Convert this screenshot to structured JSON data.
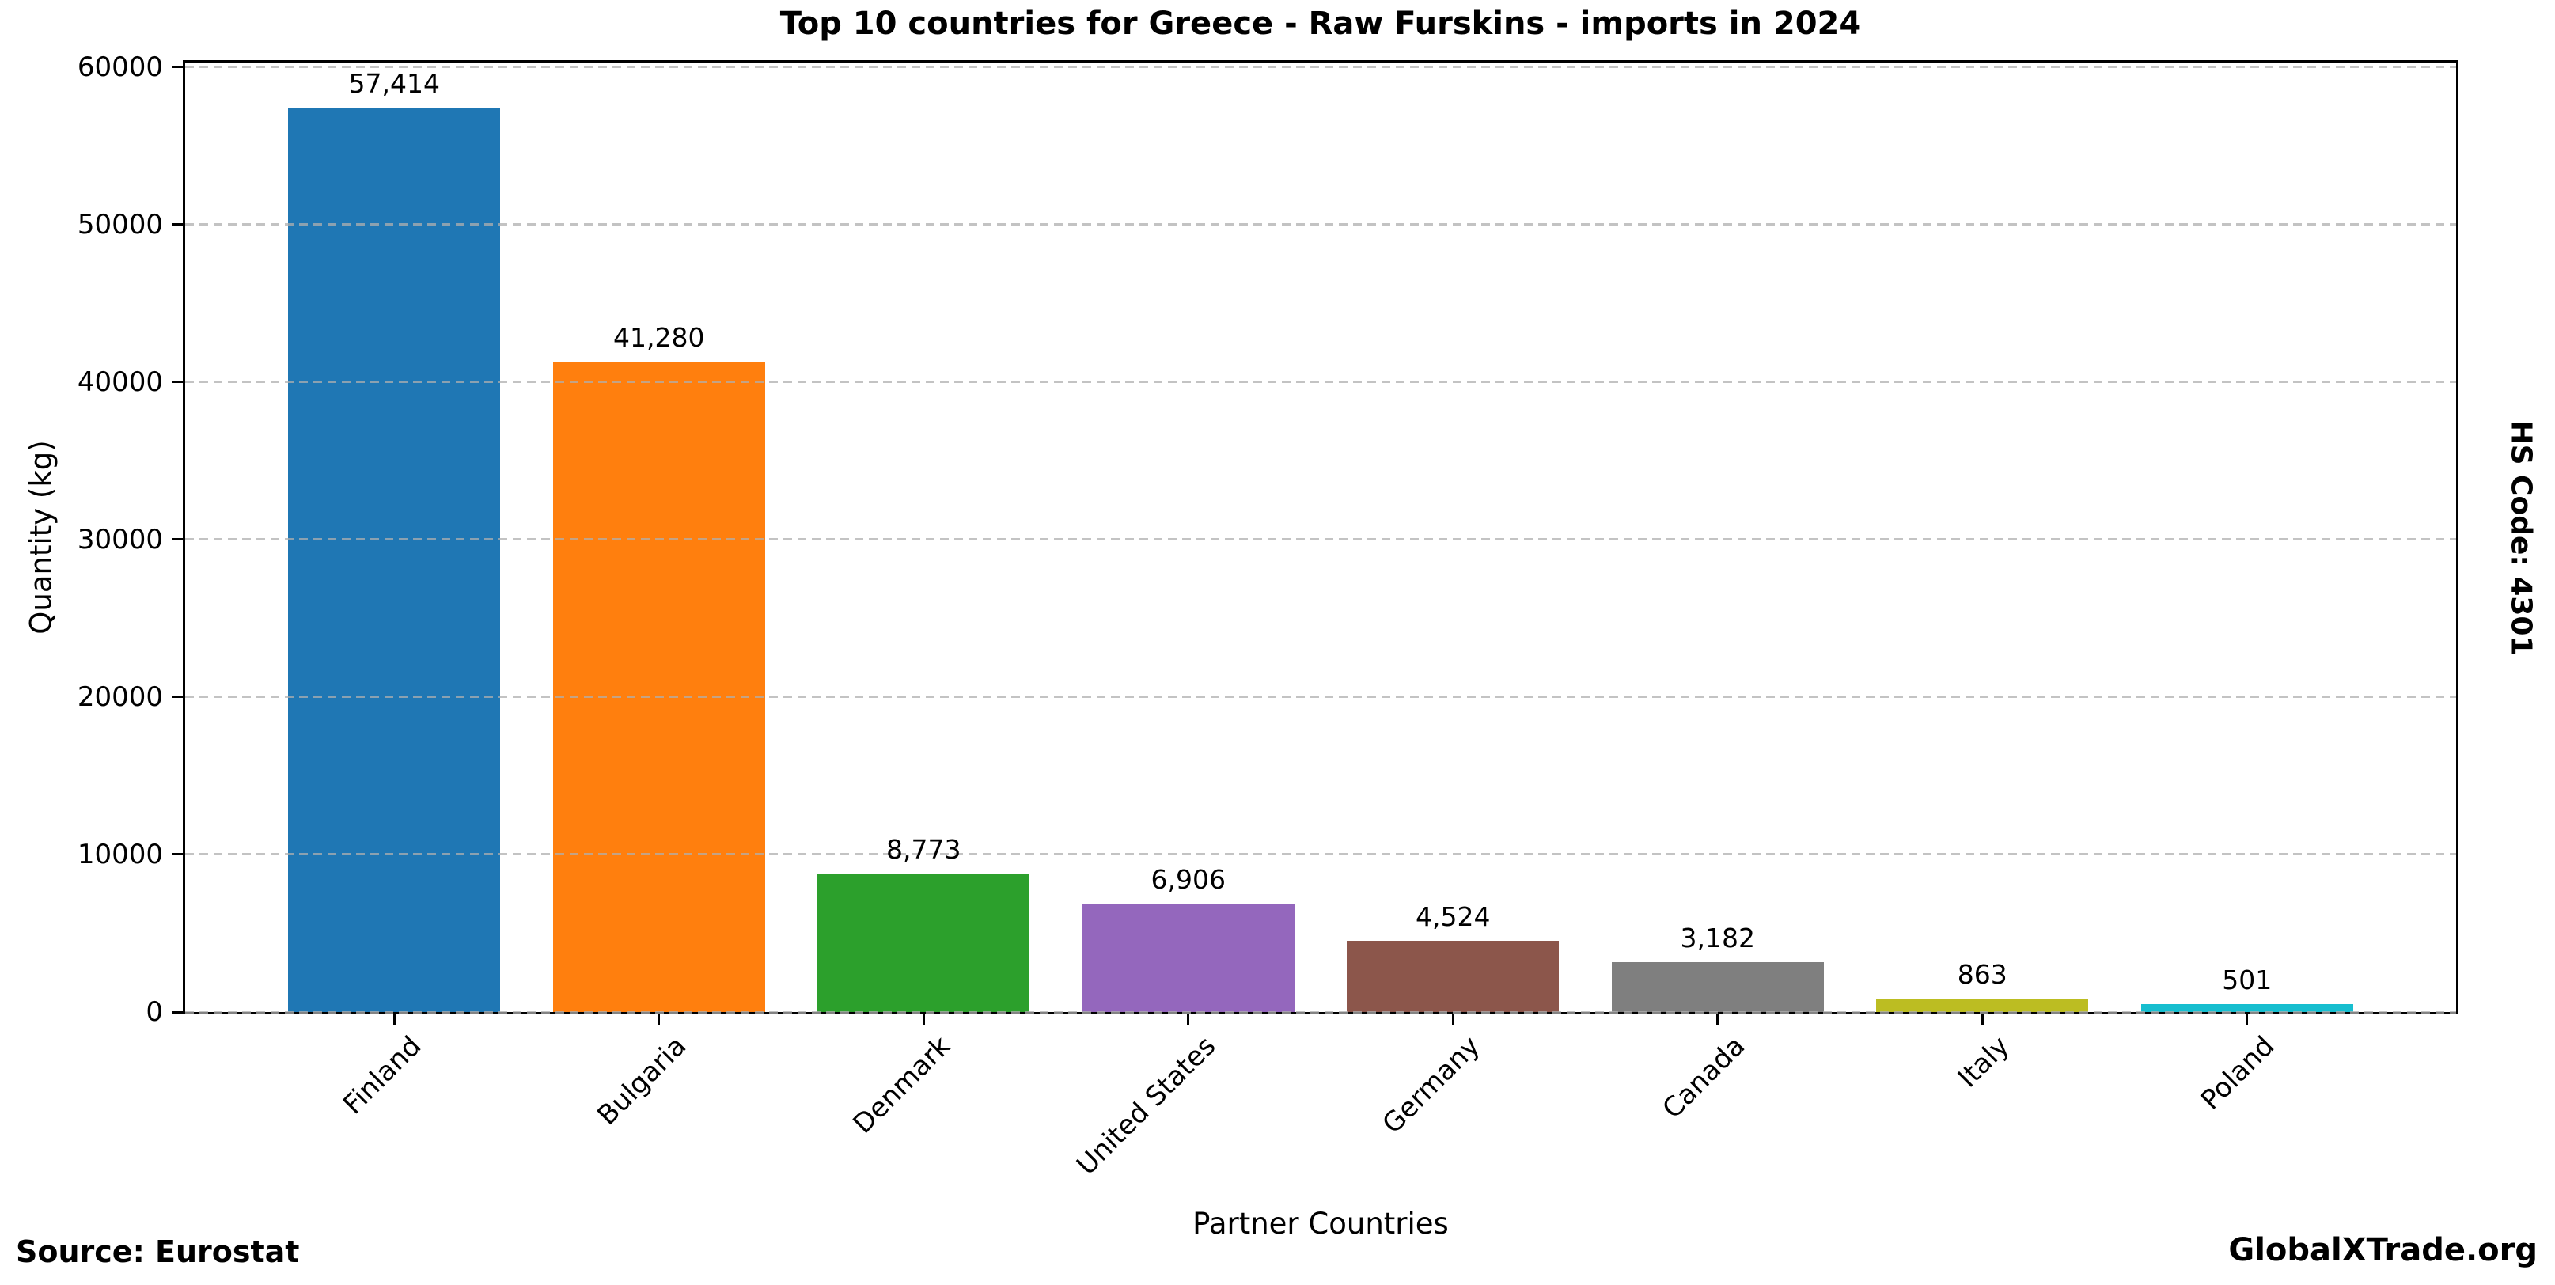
{
  "chart_data": {
    "type": "bar",
    "title": "Top 10 countries for Greece - Raw Furskins - imports in 2024",
    "xlabel": "Partner Countries",
    "ylabel": "Quantity (kg)",
    "categories": [
      "Finland",
      "Bulgaria",
      "Denmark",
      "United States",
      "Germany",
      "Canada",
      "Italy",
      "Poland"
    ],
    "values": [
      57414,
      41280,
      8773,
      6906,
      4524,
      3182,
      863,
      501
    ],
    "bar_labels": [
      "57,414",
      "41,280",
      "8,773",
      "6,906",
      "4,524",
      "3,182",
      "863",
      "501"
    ],
    "colors": [
      "#1f77b4",
      "#ff7f0e",
      "#2ca02c",
      "#9467bd",
      "#8c564b",
      "#7f7f7f",
      "#bcbd22",
      "#17becf"
    ],
    "ylim": [
      0,
      60285
    ],
    "yticks": [
      0,
      10000,
      20000,
      30000,
      40000,
      50000,
      60000
    ],
    "ytick_labels": [
      "0",
      "10000",
      "20000",
      "30000",
      "40000",
      "50000",
      "60000"
    ],
    "grid": {
      "axis": "y",
      "style": "dashed",
      "color": "#b0b0b0",
      "on_top_of_bars": true
    },
    "legend": null,
    "bar_width_fraction": 0.8,
    "x_margin_units": 0.79
  },
  "annotations": {
    "source": "Source: Eurostat",
    "watermark": "GlobalXTrade.org",
    "hs_code": "HS Code: 4301"
  }
}
